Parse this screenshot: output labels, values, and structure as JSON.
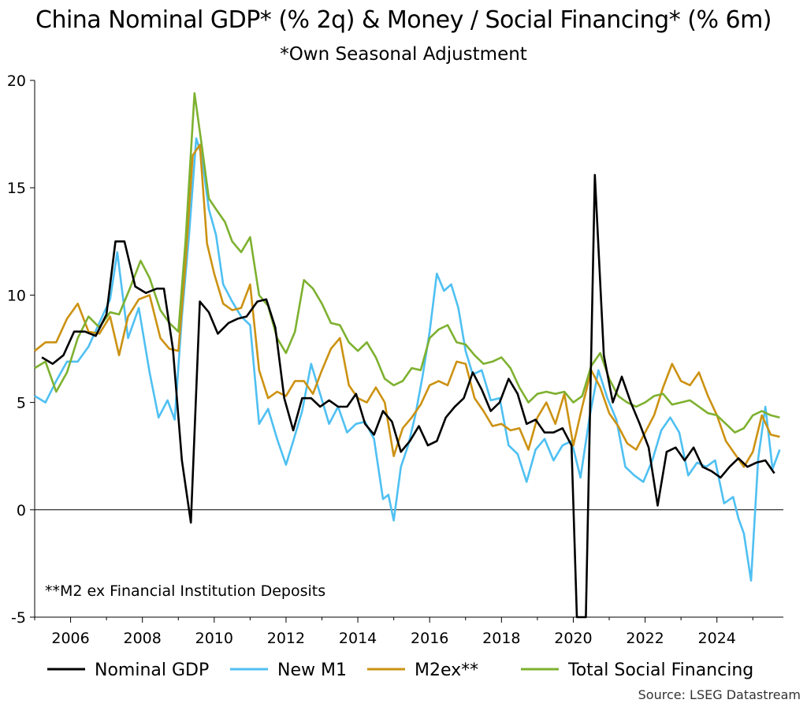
{
  "title": "China Nominal GDP* (% 2q) & Money / Social Financing* (% 6m)",
  "subtitle": "*Own Seasonal Adjustment",
  "source": "Source: LSEG Datastream",
  "chart_data": {
    "type": "line",
    "ylim": [
      -5,
      20
    ],
    "yticks": [
      -5,
      0,
      5,
      10,
      15,
      20
    ],
    "xlim": [
      2005.0,
      2025.85
    ],
    "xticks": [
      2006,
      2008,
      2010,
      2012,
      2014,
      2016,
      2018,
      2020,
      2022,
      2024
    ],
    "grid": false,
    "legend_position": "bottom",
    "annotation": "**M2 ex Financial Institution Deposits",
    "series": [
      {
        "name": "Nominal GDP",
        "color": "#000000",
        "x": [
          2005.2,
          2005.5,
          2005.8,
          2006.1,
          2006.4,
          2006.7,
          2007.0,
          2007.25,
          2007.5,
          2007.8,
          2008.1,
          2008.4,
          2008.6,
          2008.85,
          2009.1,
          2009.35,
          2009.6,
          2009.85,
          2010.1,
          2010.4,
          2010.65,
          2010.9,
          2011.2,
          2011.45,
          2011.7,
          2011.95,
          2012.2,
          2012.45,
          2012.7,
          2012.95,
          2013.2,
          2013.45,
          2013.7,
          2013.95,
          2014.2,
          2014.45,
          2014.7,
          2014.95,
          2015.2,
          2015.45,
          2015.7,
          2015.95,
          2016.2,
          2016.45,
          2016.7,
          2016.95,
          2017.2,
          2017.45,
          2017.7,
          2017.95,
          2018.2,
          2018.45,
          2018.7,
          2018.95,
          2019.2,
          2019.45,
          2019.7,
          2019.95,
          2020.1,
          2020.35,
          2020.6,
          2020.85,
          2021.1,
          2021.35,
          2021.6,
          2021.85,
          2022.1,
          2022.35,
          2022.6,
          2022.85,
          2023.1,
          2023.35,
          2023.6,
          2023.85,
          2024.1,
          2024.35,
          2024.6,
          2024.85,
          2025.1,
          2025.35,
          2025.6
        ],
        "values": [
          7.1,
          6.8,
          7.2,
          8.3,
          8.3,
          8.1,
          9.1,
          12.5,
          12.5,
          10.4,
          10.1,
          10.3,
          10.3,
          7.5,
          2.3,
          -0.6,
          9.7,
          9.2,
          8.2,
          8.7,
          8.9,
          9.0,
          9.7,
          9.8,
          8.5,
          5.2,
          3.7,
          5.2,
          5.2,
          4.8,
          5.1,
          4.8,
          4.8,
          5.4,
          4.0,
          3.5,
          4.6,
          4.1,
          2.7,
          3.2,
          3.9,
          3.0,
          3.2,
          4.3,
          4.8,
          5.2,
          6.4,
          5.6,
          4.6,
          5.0,
          6.1,
          5.4,
          4.0,
          4.2,
          3.6,
          3.6,
          3.8,
          3.0,
          -5.0,
          -5.0,
          15.6,
          7.2,
          5.0,
          6.2,
          5.0,
          4.0,
          2.9,
          0.2,
          2.7,
          2.9,
          2.3,
          2.9,
          2.0,
          1.8,
          1.5,
          2.0,
          2.4,
          2.0,
          2.2,
          2.3,
          1.7
        ]
      },
      {
        "name": "New M1",
        "color": "#4fc0f2",
        "x": [
          2005.0,
          2005.3,
          2005.6,
          2005.9,
          2006.2,
          2006.5,
          2006.8,
          2007.1,
          2007.3,
          2007.6,
          2007.9,
          2008.2,
          2008.45,
          2008.7,
          2008.9,
          2009.1,
          2009.3,
          2009.5,
          2009.65,
          2009.85,
          2010.05,
          2010.25,
          2010.5,
          2010.75,
          2011.0,
          2011.25,
          2011.5,
          2011.75,
          2012.0,
          2012.2,
          2012.45,
          2012.7,
          2012.95,
          2013.2,
          2013.45,
          2013.7,
          2013.95,
          2014.2,
          2014.45,
          2014.7,
          2014.85,
          2015.0,
          2015.2,
          2015.4,
          2015.6,
          2015.8,
          2016.0,
          2016.2,
          2016.4,
          2016.6,
          2016.8,
          2017.0,
          2017.2,
          2017.45,
          2017.7,
          2017.95,
          2018.2,
          2018.45,
          2018.7,
          2018.95,
          2019.2,
          2019.45,
          2019.7,
          2019.95,
          2020.2,
          2020.45,
          2020.7,
          2020.95,
          2021.2,
          2021.45,
          2021.7,
          2021.95,
          2022.2,
          2022.45,
          2022.7,
          2022.95,
          2023.2,
          2023.45,
          2023.7,
          2023.95,
          2024.2,
          2024.45,
          2024.6,
          2024.75,
          2024.95,
          2025.15,
          2025.35,
          2025.55,
          2025.75
        ],
        "values": [
          5.3,
          5.0,
          6.0,
          6.9,
          6.9,
          7.6,
          8.7,
          9.8,
          12.0,
          8.0,
          9.4,
          6.4,
          4.3,
          5.1,
          4.2,
          9.0,
          12.8,
          17.3,
          16.5,
          14.0,
          12.8,
          10.5,
          9.7,
          9.0,
          8.6,
          4.0,
          4.7,
          3.3,
          2.1,
          3.2,
          4.6,
          6.8,
          5.4,
          4.0,
          4.8,
          3.6,
          4.0,
          4.1,
          3.3,
          0.5,
          0.7,
          -0.5,
          2.0,
          3.0,
          4.4,
          6.2,
          8.3,
          11.0,
          10.2,
          10.5,
          9.4,
          7.4,
          6.3,
          6.5,
          5.1,
          5.2,
          3.0,
          2.6,
          1.3,
          2.8,
          3.3,
          2.3,
          3.0,
          3.2,
          1.5,
          4.3,
          6.5,
          5.2,
          4.2,
          2.0,
          1.6,
          1.3,
          2.3,
          3.7,
          4.3,
          3.6,
          1.6,
          2.2,
          2.0,
          2.3,
          0.3,
          0.6,
          -0.4,
          -1.1,
          -3.3,
          2.4,
          4.8,
          1.9,
          2.8
        ]
      },
      {
        "name": "M2ex**",
        "color": "#cc9212",
        "x": [
          2005.0,
          2005.3,
          2005.6,
          2005.9,
          2006.2,
          2006.5,
          2006.8,
          2007.1,
          2007.35,
          2007.6,
          2007.9,
          2008.2,
          2008.5,
          2008.75,
          2009.0,
          2009.2,
          2009.4,
          2009.6,
          2009.8,
          2010.0,
          2010.25,
          2010.5,
          2010.75,
          2011.0,
          2011.25,
          2011.5,
          2011.75,
          2012.0,
          2012.25,
          2012.5,
          2012.75,
          2013.0,
          2013.25,
          2013.5,
          2013.75,
          2014.0,
          2014.25,
          2014.5,
          2014.75,
          2015.0,
          2015.25,
          2015.5,
          2015.75,
          2016.0,
          2016.25,
          2016.5,
          2016.75,
          2017.0,
          2017.25,
          2017.5,
          2017.75,
          2018.0,
          2018.25,
          2018.5,
          2018.75,
          2019.0,
          2019.25,
          2019.5,
          2019.75,
          2020.0,
          2020.25,
          2020.5,
          2020.75,
          2021.0,
          2021.25,
          2021.5,
          2021.75,
          2022.0,
          2022.25,
          2022.5,
          2022.75,
          2023.0,
          2023.25,
          2023.5,
          2023.75,
          2024.0,
          2024.25,
          2024.5,
          2024.75,
          2025.0,
          2025.25,
          2025.5,
          2025.75
        ],
        "values": [
          7.4,
          7.8,
          7.8,
          8.9,
          9.6,
          8.3,
          8.2,
          9.0,
          7.2,
          9.0,
          9.8,
          10.0,
          8.0,
          7.5,
          7.4,
          11.5,
          16.5,
          17.0,
          12.4,
          11.0,
          9.6,
          9.3,
          9.4,
          10.5,
          6.5,
          5.2,
          5.5,
          5.3,
          6.0,
          6.0,
          5.4,
          6.5,
          7.5,
          8.0,
          5.8,
          5.2,
          5.0,
          5.7,
          5.0,
          2.5,
          3.8,
          4.3,
          4.9,
          5.8,
          6.0,
          5.8,
          6.9,
          6.8,
          5.2,
          4.6,
          3.9,
          4.0,
          3.7,
          3.8,
          2.8,
          4.3,
          5.0,
          4.0,
          5.4,
          3.0,
          4.8,
          6.5,
          5.7,
          4.5,
          3.9,
          3.1,
          2.8,
          3.6,
          4.4,
          5.7,
          6.8,
          6.0,
          5.8,
          6.4,
          5.3,
          4.4,
          3.2,
          2.6,
          2.0,
          2.7,
          4.4,
          3.5,
          3.4
        ]
      },
      {
        "name": "Total Social Financing",
        "color": "#7eb130",
        "x": [
          2005.0,
          2005.3,
          2005.6,
          2005.9,
          2006.2,
          2006.5,
          2006.8,
          2007.1,
          2007.35,
          2007.65,
          2007.95,
          2008.2,
          2008.5,
          2008.75,
          2009.0,
          2009.2,
          2009.45,
          2009.65,
          2009.85,
          2010.05,
          2010.3,
          2010.5,
          2010.75,
          2011.0,
          2011.25,
          2011.5,
          2011.75,
          2012.0,
          2012.25,
          2012.5,
          2012.75,
          2013.0,
          2013.25,
          2013.5,
          2013.75,
          2014.0,
          2014.25,
          2014.5,
          2014.75,
          2015.0,
          2015.25,
          2015.5,
          2015.75,
          2016.0,
          2016.25,
          2016.5,
          2016.75,
          2017.0,
          2017.25,
          2017.5,
          2017.75,
          2018.0,
          2018.25,
          2018.5,
          2018.75,
          2019.0,
          2019.25,
          2019.5,
          2019.75,
          2020.0,
          2020.25,
          2020.5,
          2020.75,
          2021.0,
          2021.25,
          2021.5,
          2021.75,
          2022.0,
          2022.25,
          2022.5,
          2022.75,
          2023.0,
          2023.25,
          2023.5,
          2023.75,
          2024.0,
          2024.25,
          2024.5,
          2024.75,
          2025.0,
          2025.25,
          2025.5,
          2025.75
        ],
        "values": [
          6.6,
          6.9,
          5.5,
          6.4,
          8.0,
          9.0,
          8.5,
          9.2,
          9.1,
          10.3,
          11.6,
          10.8,
          9.3,
          8.7,
          8.3,
          12.5,
          19.4,
          17.0,
          14.5,
          14.0,
          13.4,
          12.5,
          12.0,
          12.7,
          10.0,
          9.5,
          8.0,
          7.3,
          8.3,
          10.7,
          10.3,
          9.6,
          8.7,
          8.6,
          7.8,
          7.4,
          7.8,
          7.1,
          6.1,
          5.8,
          6.0,
          6.6,
          6.5,
          8.0,
          8.4,
          8.6,
          7.8,
          7.7,
          7.2,
          6.8,
          6.9,
          7.1,
          6.6,
          5.7,
          5.0,
          5.4,
          5.5,
          5.4,
          5.5,
          5.0,
          5.3,
          6.7,
          7.3,
          6.1,
          5.3,
          5.0,
          4.8,
          5.0,
          5.3,
          5.4,
          4.9,
          5.0,
          5.1,
          4.8,
          4.5,
          4.4,
          4.0,
          3.6,
          3.8,
          4.4,
          4.6,
          4.4,
          4.3
        ]
      }
    ]
  }
}
